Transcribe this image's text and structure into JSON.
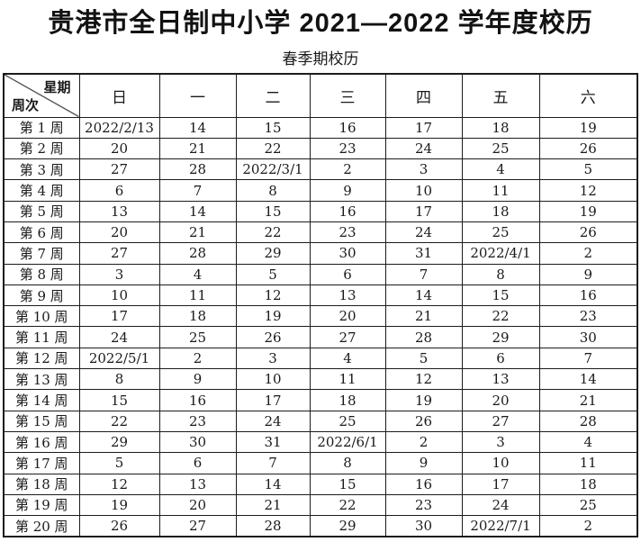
{
  "page": {
    "title": "贵港市全日制中小学 2021—2022 学年度校历",
    "subtitle": "春季期校历"
  },
  "table": {
    "corner_top": "星期",
    "corner_bottom": "周次",
    "day_headers": [
      "日",
      "一",
      "二",
      "三",
      "四",
      "五",
      "六"
    ],
    "rows": [
      {
        "week": "第 1 周",
        "days": [
          "2022/2/13",
          "14",
          "15",
          "16",
          "17",
          "18",
          "19"
        ]
      },
      {
        "week": "第 2 周",
        "days": [
          "20",
          "21",
          "22",
          "23",
          "24",
          "25",
          "26"
        ]
      },
      {
        "week": "第 3 周",
        "days": [
          "27",
          "28",
          "2022/3/1",
          "2",
          "3",
          "4",
          "5"
        ]
      },
      {
        "week": "第 4 周",
        "days": [
          "6",
          "7",
          "8",
          "9",
          "10",
          "11",
          "12"
        ]
      },
      {
        "week": "第 5 周",
        "days": [
          "13",
          "14",
          "15",
          "16",
          "17",
          "18",
          "19"
        ]
      },
      {
        "week": "第 6 周",
        "days": [
          "20",
          "21",
          "22",
          "23",
          "24",
          "25",
          "26"
        ]
      },
      {
        "week": "第 7 周",
        "days": [
          "27",
          "28",
          "29",
          "30",
          "31",
          "2022/4/1",
          "2"
        ]
      },
      {
        "week": "第 8 周",
        "days": [
          "3",
          "4",
          "5",
          "6",
          "7",
          "8",
          "9"
        ]
      },
      {
        "week": "第 9 周",
        "days": [
          "10",
          "11",
          "12",
          "13",
          "14",
          "15",
          "16"
        ]
      },
      {
        "week": "第 10 周",
        "days": [
          "17",
          "18",
          "19",
          "20",
          "21",
          "22",
          "23"
        ]
      },
      {
        "week": "第 11 周",
        "days": [
          "24",
          "25",
          "26",
          "27",
          "28",
          "29",
          "30"
        ]
      },
      {
        "week": "第 12 周",
        "days": [
          "2022/5/1",
          "2",
          "3",
          "4",
          "5",
          "6",
          "7"
        ]
      },
      {
        "week": "第 13 周",
        "days": [
          "8",
          "9",
          "10",
          "11",
          "12",
          "13",
          "14"
        ]
      },
      {
        "week": "第 14 周",
        "days": [
          "15",
          "16",
          "17",
          "18",
          "19",
          "20",
          "21"
        ]
      },
      {
        "week": "第 15 周",
        "days": [
          "22",
          "23",
          "24",
          "25",
          "26",
          "27",
          "28"
        ]
      },
      {
        "week": "第 16 周",
        "days": [
          "29",
          "30",
          "31",
          "2022/6/1",
          "2",
          "3",
          "4"
        ]
      },
      {
        "week": "第 17 周",
        "days": [
          "5",
          "6",
          "7",
          "8",
          "9",
          "10",
          "11"
        ]
      },
      {
        "week": "第 18 周",
        "days": [
          "12",
          "13",
          "14",
          "15",
          "16",
          "17",
          "18"
        ]
      },
      {
        "week": "第 19 周",
        "days": [
          "19",
          "20",
          "21",
          "22",
          "23",
          "24",
          "25"
        ]
      },
      {
        "week": "第 20 周",
        "days": [
          "26",
          "27",
          "28",
          "29",
          "30",
          "2022/7/1",
          "2"
        ]
      }
    ]
  },
  "colors": {
    "background": "#ffffff",
    "text": "#1a1a1a",
    "border": "#1c1c1c",
    "diagonal_line": "#555555"
  }
}
